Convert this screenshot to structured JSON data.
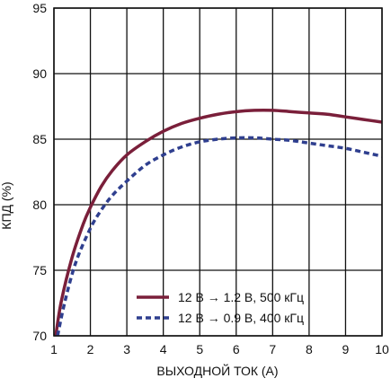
{
  "chart_data": {
    "type": "line",
    "title": "",
    "xlabel": "ВЫХОДНОЙ ТОК (A)",
    "ylabel": "КПД (%)",
    "xlim": [
      1,
      10
    ],
    "ylim": [
      70,
      95
    ],
    "xticks": [
      1,
      2,
      3,
      4,
      5,
      6,
      7,
      8,
      9,
      10
    ],
    "yticks": [
      70,
      75,
      80,
      85,
      90,
      95
    ],
    "grid": true,
    "legend_position": "bottom-right",
    "series": [
      {
        "name": "12 В → 1.2 В, 500 кГц",
        "color": "#7a1f3a",
        "style": "solid",
        "x": [
          1.05,
          1.2,
          1.5,
          1.8,
          2.0,
          2.3,
          2.6,
          3.0,
          3.5,
          4.0,
          4.5,
          5.0,
          5.5,
          6.0,
          6.5,
          7.0,
          7.5,
          8.0,
          8.5,
          9.0,
          9.5,
          10.0
        ],
        "y": [
          70.0,
          72.6,
          76.0,
          78.5,
          79.8,
          81.4,
          82.6,
          83.8,
          84.8,
          85.6,
          86.2,
          86.6,
          86.9,
          87.1,
          87.2,
          87.2,
          87.1,
          87.0,
          86.9,
          86.7,
          86.5,
          86.3
        ]
      },
      {
        "name": "12 В → 0.9 В, 400 кГц",
        "color": "#2f3f8f",
        "style": "dashed",
        "x": [
          1.1,
          1.3,
          1.6,
          2.0,
          2.3,
          2.6,
          3.0,
          3.5,
          4.0,
          4.5,
          5.0,
          5.5,
          6.0,
          6.5,
          7.0,
          7.5,
          8.0,
          8.5,
          9.0,
          9.5,
          10.0
        ],
        "y": [
          70.0,
          72.6,
          75.6,
          78.2,
          79.6,
          80.7,
          81.8,
          83.0,
          83.8,
          84.4,
          84.8,
          85.0,
          85.1,
          85.1,
          85.0,
          84.9,
          84.7,
          84.5,
          84.3,
          84.0,
          83.7
        ]
      }
    ]
  }
}
